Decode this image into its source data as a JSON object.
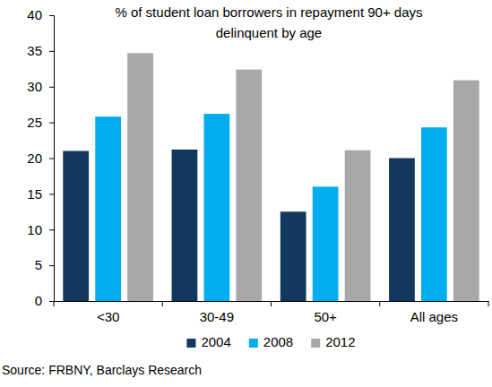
{
  "chart_data": {
    "type": "bar",
    "title": "% of student loan borrowers in repayment 90+ days delinquent by age",
    "source": "Source: FRBNY, Barclays Research",
    "categories": [
      "<30",
      "30-49",
      "50+",
      "All ages"
    ],
    "series": [
      {
        "name": "2004",
        "color": "#12385e",
        "values": [
          21,
          21.2,
          12.5,
          20
        ]
      },
      {
        "name": "2008",
        "color": "#00aeef",
        "values": [
          25.8,
          26.2,
          16,
          24.3
        ]
      },
      {
        "name": "2012",
        "color": "#a8a8a8",
        "values": [
          34.7,
          32.4,
          21.1,
          30.9
        ]
      }
    ],
    "ylim": [
      0,
      40
    ],
    "yticks": [
      0,
      5,
      10,
      15,
      20,
      25,
      30,
      35,
      40
    ],
    "grid": false,
    "legend": "bottom"
  }
}
